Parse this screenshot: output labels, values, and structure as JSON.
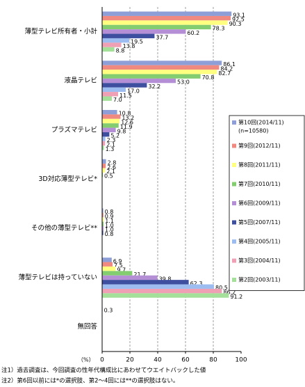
{
  "chart_data": {
    "type": "bar",
    "orientation": "horizontal",
    "categories": [
      "薄型テレビ所有者・小計",
      "液晶テレビ",
      "プラズマテレビ",
      "3D対応薄型テレビ*",
      "その他の薄型テレビ**",
      "薄型テレビは持っていない",
      "無回答"
    ],
    "series": [
      {
        "name": "第10回(2014/11)",
        "note": "(n=10580)",
        "color": "#8e9fd8",
        "values": [
          93.1,
          86.1,
          10.8,
          2.8,
          0.8,
          6.9,
          0.3
        ],
        "value_labels": [
          "93.1",
          "86.1",
          "10.8",
          "2.8",
          "0.8",
          "6.9",
          "0.3"
        ]
      },
      {
        "name": "第9回(2012/11)",
        "color": "#f08a80",
        "values": [
          92.5,
          84.2,
          13.2,
          2.6,
          0.9,
          7.5,
          null
        ],
        "value_labels": [
          "92.5",
          "84.2",
          "13.2",
          "2.6",
          "0.9",
          "7.5",
          null
        ]
      },
      {
        "name": "第8回(2011/11)",
        "color": "#ffff80",
        "values": [
          90.3,
          82.7,
          12.6,
          2.1,
          1.1,
          9.7,
          null
        ],
        "value_labels": [
          "90.3",
          "82.7",
          "12.6",
          "2.1",
          "1.1",
          "9.7",
          null
        ]
      },
      {
        "name": "第7回(2010/11)",
        "color": "#84cc70",
        "values": [
          78.3,
          70.8,
          11.9,
          0.5,
          1.0,
          21.7,
          null
        ],
        "value_labels": [
          "78.3",
          "70.8",
          "11.9",
          "0.5",
          "1.0",
          "21.7",
          null
        ]
      },
      {
        "name": "第6回(2009/11)",
        "color": "#b58fd6",
        "values": [
          60.2,
          53.0,
          9.8,
          null,
          1.0,
          39.8,
          null
        ],
        "value_labels": [
          "60.2",
          "53.0",
          "9.8",
          null,
          "1.0",
          "39.8",
          null
        ]
      },
      {
        "name": "第5回(2007/11)",
        "color": "#3f4fa0",
        "values": [
          37.7,
          32.2,
          5.2,
          null,
          0.8,
          62.3,
          null
        ],
        "value_labels": [
          "37.7",
          "32.2",
          "5.2",
          null,
          "0.8",
          "62.3",
          null
        ]
      },
      {
        "name": "第4回(2005/11)",
        "color": "#9dbdf0",
        "values": [
          19.5,
          17.0,
          2.3,
          null,
          null,
          80.5,
          null
        ],
        "value_labels": [
          "19.5",
          "17.0",
          "2.3",
          null,
          null,
          "80.5",
          null
        ]
      },
      {
        "name": "第3回(2004/11)",
        "color": "#f0a0b4",
        "values": [
          13.8,
          11.5,
          2.1,
          null,
          null,
          86.2,
          null
        ],
        "value_labels": [
          "13.8",
          "11.5",
          "2.1",
          null,
          null,
          "86.2",
          null
        ]
      },
      {
        "name": "第2回(2003/11)",
        "color": "#a4e09a",
        "values": [
          8.8,
          7.0,
          1.3,
          null,
          null,
          91.2,
          null
        ],
        "value_labels": [
          "8.8",
          "7.0",
          "1.3",
          null,
          null,
          "91.2",
          null
        ]
      }
    ],
    "xlim": [
      0,
      100
    ],
    "xticks": [
      0,
      20,
      40,
      60,
      80,
      100
    ],
    "grid": true,
    "unit_label": "（%）",
    "notes": [
      "注1）過去調査は、今回調査の性年代構成比にあわせてウエイトバックした値",
      "注2）第6回以前には*の選択肢、第2～4回には**の選択肢はない。"
    ]
  }
}
